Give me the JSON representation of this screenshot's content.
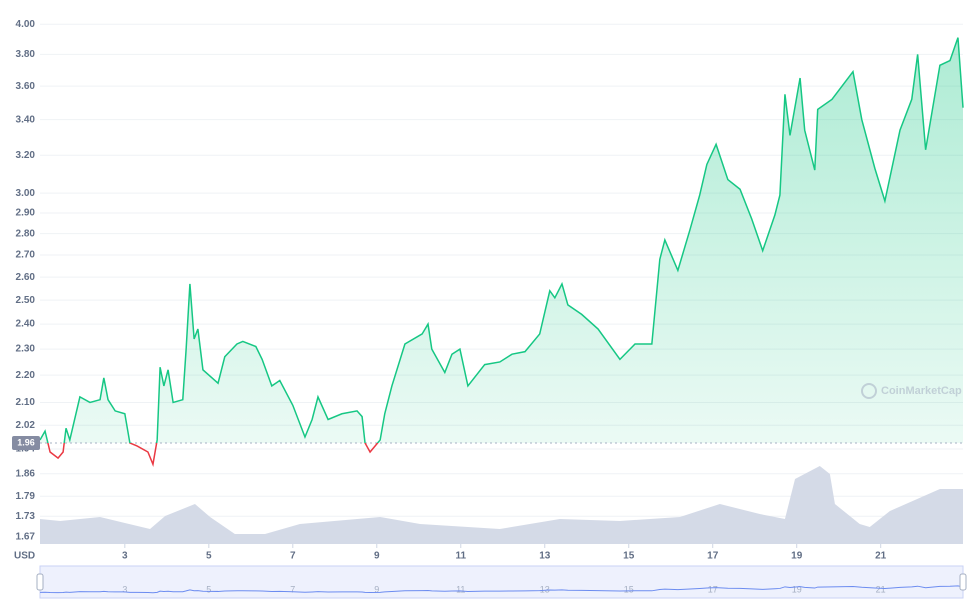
{
  "chart_data": {
    "type": "line",
    "log_scale": true,
    "grid": true,
    "currency": "USD",
    "watermark": "CoinMarketCap",
    "colors": {
      "up": "#16c784",
      "down": "#ea3943",
      "volume": "#cfd6e4",
      "navigator": "#6c8cf0"
    },
    "reference": {
      "value": 1.96,
      "label": "1.96"
    },
    "xlim": [
      0.98,
      22.96
    ],
    "xticks": [
      3,
      5,
      7,
      9,
      11,
      13,
      15,
      17,
      19,
      21
    ],
    "ylim": [
      1.65,
      4.05
    ],
    "yticks": [
      {
        "value": 4.0,
        "label": "4.00"
      },
      {
        "value": 3.8,
        "label": "3.80"
      },
      {
        "value": 3.6,
        "label": "3.60"
      },
      {
        "value": 3.4,
        "label": "3.40"
      },
      {
        "value": 3.2,
        "label": "3.20"
      },
      {
        "value": 3.0,
        "label": "3.00"
      },
      {
        "value": 2.9,
        "label": "2.90"
      },
      {
        "value": 2.8,
        "label": "2.80"
      },
      {
        "value": 2.7,
        "label": "2.70"
      },
      {
        "value": 2.6,
        "label": "2.60"
      },
      {
        "value": 2.5,
        "label": "2.50"
      },
      {
        "value": 2.4,
        "label": "2.40"
      },
      {
        "value": 2.3,
        "label": "2.30"
      },
      {
        "value": 2.2,
        "label": "2.20"
      },
      {
        "value": 2.1,
        "label": "2.10"
      },
      {
        "value": 2.02,
        "label": "2.02"
      },
      {
        "value": 1.94,
        "label": "1.94"
      },
      {
        "value": 1.86,
        "label": "1.86"
      },
      {
        "value": 1.79,
        "label": "1.79"
      },
      {
        "value": 1.73,
        "label": "1.73"
      },
      {
        "value": 1.67,
        "label": "1.67"
      }
    ],
    "x": [
      0.98,
      1.1,
      1.22,
      1.41,
      1.53,
      1.6,
      1.69,
      1.93,
      2.17,
      2.41,
      2.5,
      2.6,
      2.77,
      3.0,
      3.12,
      3.29,
      3.55,
      3.67,
      3.77,
      3.84,
      3.93,
      4.03,
      4.15,
      4.38,
      4.46,
      4.55,
      4.65,
      4.74,
      4.86,
      5.22,
      5.38,
      5.67,
      5.81,
      6.12,
      6.27,
      6.5,
      6.69,
      7.0,
      7.29,
      7.46,
      7.6,
      7.84,
      8.17,
      8.53,
      8.65,
      8.72,
      8.84,
      9.08,
      9.19,
      9.36,
      9.67,
      10.08,
      10.22,
      10.31,
      10.62,
      10.79,
      10.98,
      11.17,
      11.57,
      11.93,
      12.22,
      12.53,
      12.88,
      13.12,
      13.24,
      13.41,
      13.55,
      13.88,
      14.27,
      14.79,
      15.15,
      15.55,
      15.74,
      15.86,
      16.17,
      16.46,
      16.69,
      16.86,
      17.08,
      17.36,
      17.65,
      17.93,
      18.19,
      18.48,
      18.6,
      18.72,
      18.84,
      19.08,
      19.19,
      19.43,
      19.5,
      19.84,
      20.34,
      20.55,
      20.86,
      21.1,
      21.46,
      21.74,
      21.88,
      22.07,
      22.41,
      22.65,
      22.84,
      22.96
    ],
    "values": [
      1.97,
      2.0,
      1.93,
      1.91,
      1.93,
      2.01,
      1.97,
      2.12,
      2.1,
      2.11,
      2.19,
      2.11,
      2.07,
      2.06,
      1.96,
      1.95,
      1.93,
      1.89,
      1.97,
      2.23,
      2.16,
      2.22,
      2.1,
      2.11,
      2.3,
      2.57,
      2.34,
      2.38,
      2.22,
      2.17,
      2.27,
      2.32,
      2.33,
      2.31,
      2.26,
      2.16,
      2.18,
      2.09,
      1.98,
      2.04,
      2.12,
      2.04,
      2.06,
      2.07,
      2.05,
      1.96,
      1.93,
      1.97,
      2.06,
      2.16,
      2.32,
      2.36,
      2.4,
      2.3,
      2.21,
      2.28,
      2.3,
      2.16,
      2.24,
      2.25,
      2.28,
      2.29,
      2.36,
      2.54,
      2.51,
      2.57,
      2.48,
      2.44,
      2.38,
      2.26,
      2.32,
      2.32,
      2.68,
      2.77,
      2.63,
      2.82,
      2.99,
      3.15,
      3.26,
      3.07,
      3.02,
      2.87,
      2.72,
      2.89,
      2.99,
      3.55,
      3.31,
      3.65,
      3.34,
      3.12,
      3.46,
      3.52,
      3.69,
      3.4,
      3.13,
      2.96,
      3.34,
      3.52,
      3.8,
      3.23,
      3.73,
      3.76,
      3.91,
      3.47
    ],
    "volume": {
      "ylim": [
        0,
        80
      ],
      "x": [
        0.98,
        1.46,
        2.41,
        3.6,
        3.96,
        4.67,
        5.03,
        5.62,
        6.34,
        7.17,
        9.08,
        10.03,
        11.93,
        13.36,
        14.79,
        16.22,
        17.17,
        18.12,
        18.72,
        18.96,
        19.55,
        19.79,
        19.91,
        20.5,
        20.74,
        21.22,
        22.41,
        22.96
      ],
      "values": [
        25,
        23,
        27,
        15,
        28,
        40,
        27,
        10,
        10,
        20,
        27,
        20,
        15,
        25,
        23,
        27,
        40,
        30,
        25,
        65,
        78,
        70,
        40,
        20,
        17,
        33,
        55,
        55
      ]
    }
  }
}
